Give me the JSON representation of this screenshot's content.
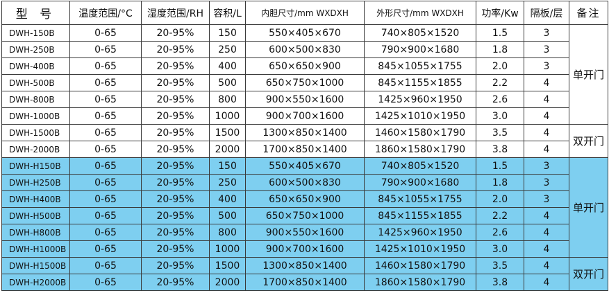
{
  "headers": [
    "型 号",
    "温度范围/°C",
    "湿度范围/RH",
    "容积/L",
    "内胆尺寸/mm WXDXH",
    "外形尺寸/mm WXDXH",
    "功率/Kw",
    "隔板/层",
    "备注"
  ],
  "colors": {
    "group_1_background": "#ffffff",
    "group_2_background": "#7ecff0",
    "border": "#3a3a3a"
  },
  "groups": [
    {
      "background": "#ffffff",
      "rows": [
        [
          "DWH-150B",
          "0-65",
          "20-95%",
          "150",
          "550×405×670",
          "740×805×1520",
          "1.5",
          "3"
        ],
        [
          "DWH-250B",
          "0-65",
          "20-95%",
          "250",
          "600×500×830",
          "790×900×1680",
          "1.8",
          "3"
        ],
        [
          "DWH-400B",
          "0-65",
          "20-95%",
          "400",
          "650×650×900",
          "845×1055×1755",
          "2.0",
          "3"
        ],
        [
          "DWH-500B",
          "0-65",
          "20-95%",
          "500",
          "650×750×1000",
          "845×1155×1855",
          "2.2",
          "4"
        ],
        [
          "DWH-800B",
          "0-65",
          "20-95%",
          "800",
          "900×550×1600",
          "1425×960×1950",
          "2.6",
          "4"
        ],
        [
          "DWH-1000B",
          "0-65",
          "20-95%",
          "1000",
          "900×700×1600",
          "1425×1010×1950",
          "3.0",
          "4"
        ],
        [
          "DWH-1500B",
          "0-65",
          "20-95%",
          "1500",
          "1300×850×1400",
          "1460×1580×1790",
          "3.5",
          "4"
        ],
        [
          "DWH-2000B",
          "0-65",
          "20-95%",
          "2000",
          "1700×850×1400",
          "1860×1580×1790",
          "3.8",
          "4"
        ]
      ],
      "notes": [
        {
          "text": "单开门",
          "rowspan": 6
        },
        {
          "text": "双开门",
          "rowspan": 2
        }
      ]
    },
    {
      "background": "#7ecff0",
      "rows": [
        [
          "DWH-H150B",
          "0-65",
          "20-95%",
          "150",
          "550×405×670",
          "740×805×1520",
          "1.5",
          "3"
        ],
        [
          "DWH-H250B",
          "0-65",
          "20-95%",
          "250",
          "600×500×830",
          "790×900×1680",
          "1.8",
          "3"
        ],
        [
          "DWH-H400B",
          "0-65",
          "20-95%",
          "400",
          "650×650×900",
          "845×1055×1755",
          "2.0",
          "3"
        ],
        [
          "DWH-H500B",
          "0-65",
          "20-95%",
          "500",
          "650×750×1000",
          "845×1155×1855",
          "2.2",
          "4"
        ],
        [
          "DWH-H800B",
          "0-65",
          "20-95%",
          "800",
          "900×550×1600",
          "1425×960×1950",
          "2.6",
          "4"
        ],
        [
          "DWH-H1000B",
          "0-65",
          "20-95%",
          "1000",
          "900×700×1600",
          "1425×1010×1950",
          "3.0",
          "4"
        ],
        [
          "DWH-H1500B",
          "0-65",
          "20-95%",
          "1500",
          "1300×850×1400",
          "1460×1580×1790",
          "3.5",
          "4"
        ],
        [
          "DWH-H2000B",
          "0-65",
          "20-95%",
          "2000",
          "1700×850×1400",
          "1860×1580×1790",
          "3.8",
          "4"
        ]
      ],
      "notes": [
        {
          "text": "单开门",
          "rowspan": 6
        },
        {
          "text": "双开门",
          "rowspan": 2
        }
      ]
    }
  ]
}
